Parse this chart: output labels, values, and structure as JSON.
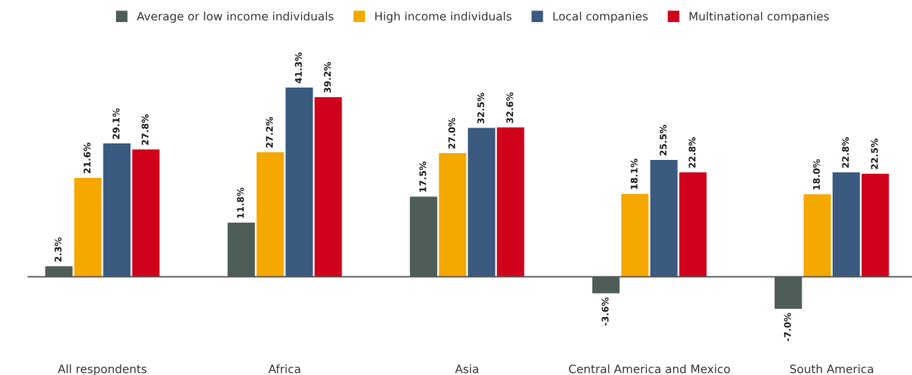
{
  "chart_data": {
    "type": "bar",
    "categories": [
      "All respondents",
      "Africa",
      "Asia",
      "Central America and Mexico",
      "South America"
    ],
    "series": [
      {
        "name": "Average or low income individuals",
        "color": "#4e5d58",
        "values": [
          2.3,
          11.8,
          17.5,
          -3.6,
          -7.0
        ],
        "value_labels": [
          "2.3%",
          "11.8%",
          "17.5%",
          "-3.6%",
          "-7.0%"
        ]
      },
      {
        "name": "High income individuals",
        "color": "#f5a800",
        "values": [
          21.6,
          27.2,
          27.0,
          18.1,
          18.0
        ],
        "value_labels": [
          "21.6%",
          "27.2%",
          "27.0%",
          "18.1%",
          "18.0%"
        ]
      },
      {
        "name": "Local companies",
        "color": "#3a5a80",
        "values": [
          29.1,
          41.3,
          32.5,
          25.5,
          22.8
        ],
        "value_labels": [
          "29.1%",
          "41.3%",
          "32.5%",
          "25.5%",
          "22.8%"
        ]
      },
      {
        "name": "Multinational companies",
        "color": "#d0021b",
        "values": [
          27.8,
          39.2,
          32.6,
          22.8,
          22.5
        ],
        "value_labels": [
          "27.8%",
          "39.2%",
          "32.6%",
          "22.8%",
          "22.5%"
        ]
      }
    ],
    "legend": "top",
    "tick_labels": "x"
  }
}
